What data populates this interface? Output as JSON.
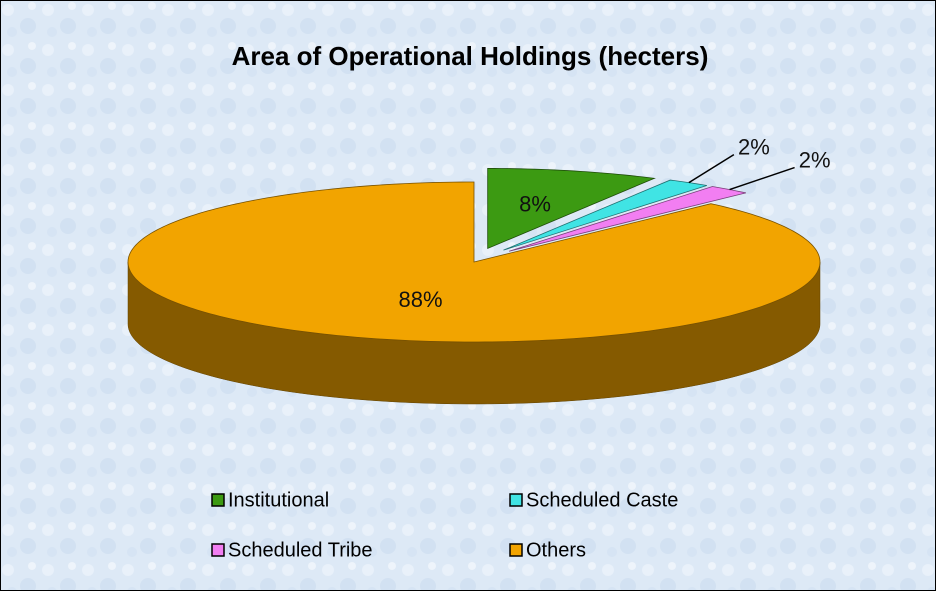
{
  "chart_data": {
    "type": "pie",
    "title": "Area of  Operational  Holdings (hecters)",
    "categories": [
      "Institutional",
      "Scheduled  Caste",
      "Scheduled  Tribe",
      "Others"
    ],
    "values": [
      8,
      2,
      2,
      88
    ],
    "value_labels": [
      "8%",
      "2%",
      "2%",
      "88%"
    ],
    "colors": [
      "#3c9a12",
      "#40e4e4",
      "#f27ef2",
      "#f2a400"
    ]
  }
}
